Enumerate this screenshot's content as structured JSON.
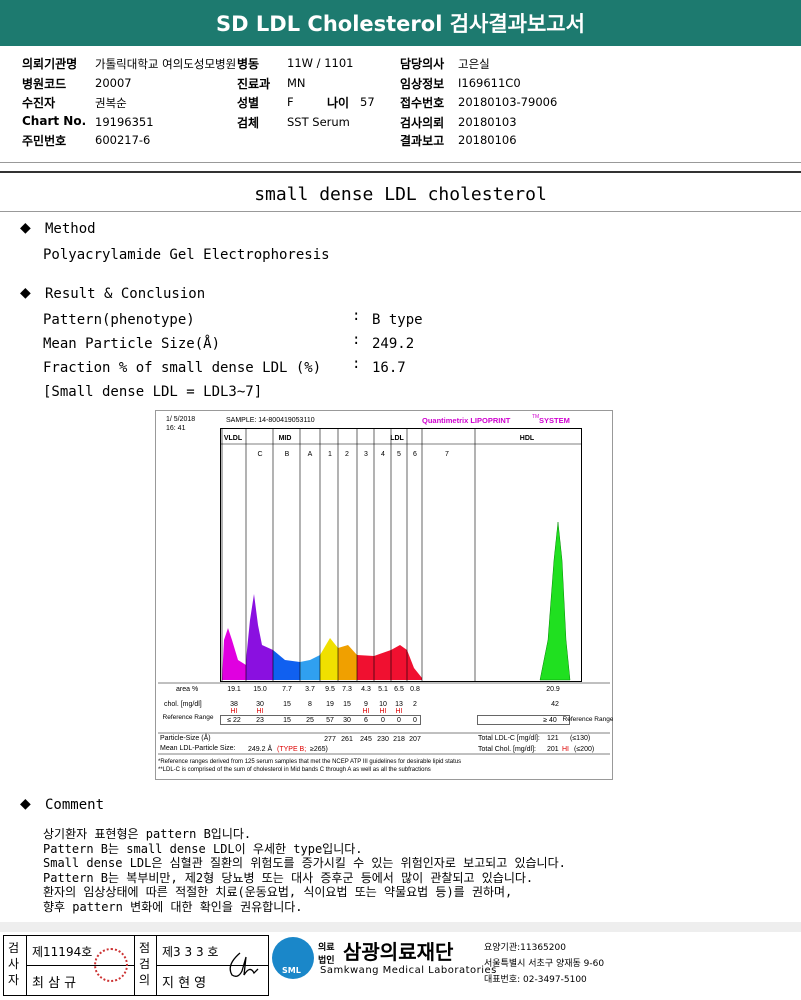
{
  "header": {
    "title": "SD LDL Cholesterol 검사결과보고서"
  },
  "info": {
    "rows": [
      [
        {
          "label": "의뢰기관명",
          "value": "가톨릭대학교 여의도성모병원"
        },
        {
          "label": "병동",
          "value": "11W / 1101"
        },
        {
          "label": "담당의사",
          "value": "고은실"
        }
      ],
      [
        {
          "label": "병원코드",
          "value": "20007"
        },
        {
          "label": "진료과",
          "value": "MN"
        },
        {
          "label": "임상정보",
          "value": "I169611C0"
        }
      ],
      [
        {
          "label": "수진자",
          "value": "권복순"
        },
        {
          "label": "성별",
          "value": "F"
        },
        {
          "label": "나이",
          "value": "57"
        },
        {
          "label": "접수번호",
          "value": "20180103-79006"
        }
      ],
      [
        {
          "label": "Chart No.",
          "value": "19196351"
        },
        {
          "label": "검체",
          "value": "SST Serum"
        },
        {
          "label": "검사의뢰",
          "value": "20180103"
        }
      ],
      [
        {
          "label": "주민번호",
          "value": "600217-6"
        },
        {
          "label": "결과보고",
          "value": "20180106"
        }
      ]
    ]
  },
  "section": {
    "title": "small dense LDL cholesterol"
  },
  "method": {
    "heading": "Method",
    "text": "Polyacrylamide Gel Electrophoresis"
  },
  "result": {
    "heading": "Result & Conclusion",
    "rows": [
      {
        "label": "Pattern(phenotype)",
        "sep": ":",
        "value": "B type"
      },
      {
        "label": "Mean Particle Size(Å)",
        "sep": ":",
        "value": "249.2"
      },
      {
        "label": "Fraction % of small dense LDL (%)",
        "sep": ":",
        "value": "16.7"
      }
    ],
    "note": "[Small dense LDL = LDL3~7]"
  },
  "figure": {
    "date": "1/ 5/2018",
    "time": "16: 41",
    "sample": "SAMPLE:  14-800419053110",
    "brand": "Quantimetrix LIPOPRINT",
    "tm": "TM",
    "system": "SYSTEM",
    "groups": [
      "VLDL",
      "MID",
      "LDL",
      "HDL"
    ],
    "subs": [
      "C",
      "B",
      "A",
      "1",
      "2",
      "3",
      "4",
      "5",
      "6",
      "7"
    ],
    "row_labels": {
      "area": "area %",
      "chol": "chol. [mg/dl]",
      "ref": "Reference Range",
      "size": "Particle-Size (Å)",
      "mean": "Mean LDL-Particle Size:",
      "ref_right": "Reference Range"
    },
    "columns": [
      {
        "area": "19.1",
        "chol": "38",
        "flag": "HI",
        "ref": "≤ 22"
      },
      {
        "area": "15.0",
        "chol": "30",
        "flag": "HI",
        "ref": "23"
      },
      {
        "area": "7.7",
        "chol": "15",
        "ref": "15"
      },
      {
        "area": "3.7",
        "chol": "8",
        "ref": "25"
      },
      {
        "area": "9.5",
        "chol": "19",
        "ref": "57",
        "size": "277"
      },
      {
        "area": "7.3",
        "chol": "15",
        "ref": "30",
        "size": "261"
      },
      {
        "area": "4.3",
        "chol": "9",
        "flag": "HI",
        "ref": "6",
        "size": "245"
      },
      {
        "area": "5.1",
        "chol": "10",
        "flag": "HI",
        "ref": "0",
        "size": "230"
      },
      {
        "area": "6.5",
        "chol": "13",
        "flag": "HI",
        "ref": "0",
        "size": "218"
      },
      {
        "area": "0.8",
        "chol": "2",
        "ref": "0",
        "size": "207"
      }
    ],
    "hdl": {
      "area": "20.9",
      "chol": "42",
      "ref": "≥ 40"
    },
    "mean_value": "249.2 Å",
    "mean_type": "(TYPE B;",
    "mean_ref": "≥265)",
    "total_ldl": {
      "label": "Total LDL-C [mg/dl]:",
      "value": "121",
      "ref": "(≤130)"
    },
    "total_chol": {
      "label": "Total Chol. [mg/dl]:",
      "value": "201",
      "flag": "HI",
      "ref": "(≤200)"
    },
    "footnotes": [
      "*Reference ranges derived from 125 serum samples that met the NCEP ATP III guidelines for desirable lipid status",
      "**LDL-C is comprised of the sum of cholesterol in Mid bands C through A as well as all the subfractions"
    ]
  },
  "comment": {
    "heading": "Comment",
    "lines": [
      "상기환자 표현형은 pattern B입니다.",
      "Pattern B는 small dense LDL이 우세한 type입니다.",
      "Small dense LDL은 심혈관 질환의 위험도를 증가시킬 수 있는 위험인자로 보고되고 있습니다.",
      "Pattern B는 복부비만, 제2형 당뇨병 또는 대사 증후군 등에서 많이 관찰되고 있습니다.",
      "환자의 임상상태에 따른 적절한 치료(운동요법, 식이요법 또는 약물요법 등)를 권하며,",
      "향후 pattern 변화에 대한 확인을 권유합니다."
    ]
  },
  "footer": {
    "tester_role": "검사자",
    "tester_no": "제11194호",
    "tester_name": "최 삼 규",
    "checker_role": "점검의",
    "checker_no": "제3 3 3 호",
    "checker_name": "지 현 영",
    "logo": "SML",
    "org_type": "의료법인",
    "org": "삼광의료재단",
    "org_en": "Samkwang Medical Laboratories",
    "code": "요양기관:11365200",
    "address": "서울특별시 서초구 양재동 9-60",
    "phone": "대표번호: 02-3497-5100"
  }
}
